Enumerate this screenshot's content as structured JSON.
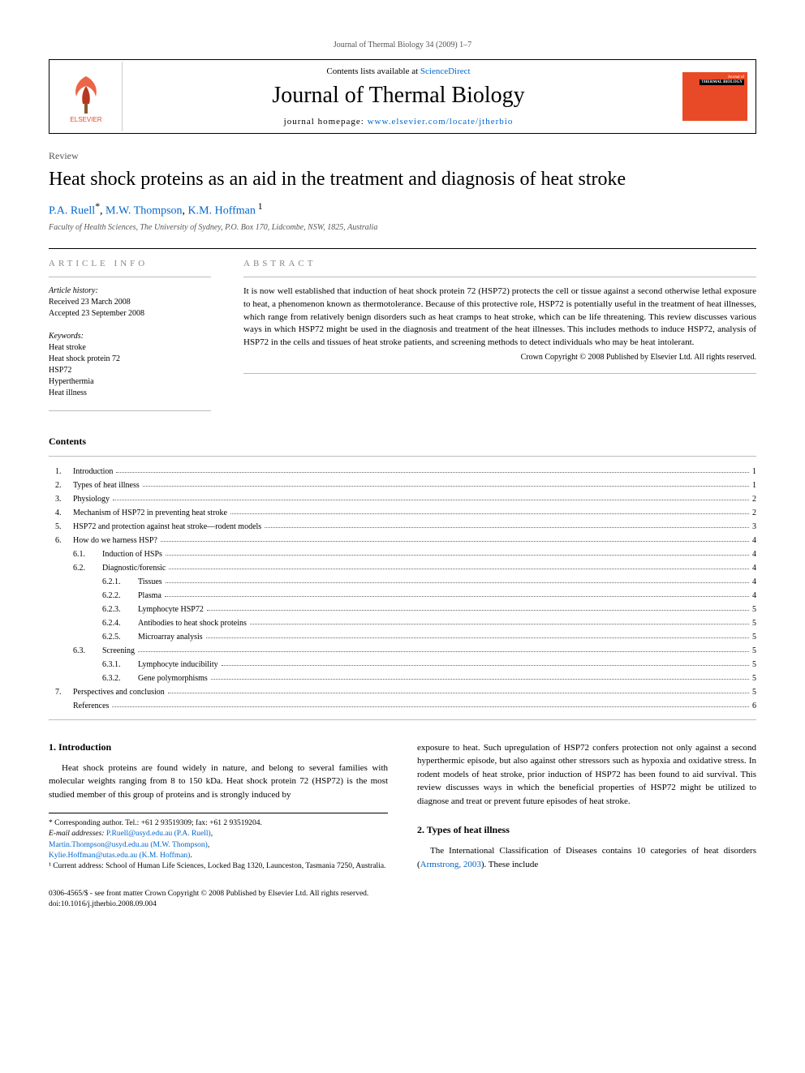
{
  "running_head": "Journal of Thermal Biology 34 (2009) 1–7",
  "header": {
    "contents_prefix": "Contents lists available at ",
    "contents_link": "ScienceDirect",
    "journal_name": "Journal of Thermal Biology",
    "homepage_prefix": "journal homepage: ",
    "homepage_link": "www.elsevier.com/locate/jtherbio",
    "elsevier_label": "ELSEVIER",
    "cover_label1": "Journal of",
    "cover_label2": "THERMAL BIOLOGY"
  },
  "article_type": "Review",
  "title": "Heat shock proteins as an aid in the treatment and diagnosis of heat stroke",
  "authors_html": "P.A. Ruell *, M.W. Thompson, K.M. Hoffman ¹",
  "authors": {
    "a1": "P.A. Ruell",
    "sup1": "*",
    "sep1": ", ",
    "a2": "M.W. Thompson",
    "sep2": ", ",
    "a3": "K.M. Hoffman",
    "sup2": " 1"
  },
  "affiliation": "Faculty of Health Sciences, The University of Sydney, P.O. Box 170, Lidcombe, NSW, 1825, Australia",
  "info_head": "ARTICLE INFO",
  "abstract_head": "ABSTRACT",
  "history": {
    "lbl": "Article history:",
    "received": "Received 23 March 2008",
    "accepted": "Accepted 23 September 2008"
  },
  "keywords": {
    "lbl": "Keywords:",
    "items": [
      "Heat stroke",
      "Heat shock protein 72",
      "HSP72",
      "Hyperthermia",
      "Heat illness"
    ]
  },
  "abstract": "It is now well established that induction of heat shock protein 72 (HSP72) protects the cell or tissue against a second otherwise lethal exposure to heat, a phenomenon known as thermotolerance. Because of this protective role, HSP72 is potentially useful in the treatment of heat illnesses, which range from relatively benign disorders such as heat cramps to heat stroke, which can be life threatening. This review discusses various ways in which HSP72 might be used in the diagnosis and treatment of the heat illnesses. This includes methods to induce HSP72, analysis of HSP72 in the cells and tissues of heat stroke patients, and screening methods to detect individuals who may be heat intolerant.",
  "copyright_line": "Crown Copyright © 2008 Published by Elsevier Ltd. All rights reserved.",
  "contents_head": "Contents",
  "toc": [
    {
      "level": 1,
      "num": "1.",
      "text": "Introduction",
      "page": "1"
    },
    {
      "level": 1,
      "num": "2.",
      "text": "Types of heat illness",
      "page": "1"
    },
    {
      "level": 1,
      "num": "3.",
      "text": "Physiology",
      "page": "2"
    },
    {
      "level": 1,
      "num": "4.",
      "text": "Mechanism of HSP72 in preventing heat stroke",
      "page": "2"
    },
    {
      "level": 1,
      "num": "5.",
      "text": "HSP72 and protection against heat stroke—rodent models",
      "page": "3"
    },
    {
      "level": 1,
      "num": "6.",
      "text": "How do we harness HSP?",
      "page": "4"
    },
    {
      "level": 2,
      "num": "6.1.",
      "text": "Induction of HSPs",
      "page": "4"
    },
    {
      "level": 2,
      "num": "6.2.",
      "text": "Diagnostic/forensic",
      "page": "4"
    },
    {
      "level": 3,
      "num": "6.2.1.",
      "text": "Tissues",
      "page": "4"
    },
    {
      "level": 3,
      "num": "6.2.2.",
      "text": "Plasma",
      "page": "4"
    },
    {
      "level": 3,
      "num": "6.2.3.",
      "text": "Lymphocyte HSP72",
      "page": "5"
    },
    {
      "level": 3,
      "num": "6.2.4.",
      "text": "Antibodies to heat shock proteins",
      "page": "5"
    },
    {
      "level": 3,
      "num": "6.2.5.",
      "text": "Microarray analysis",
      "page": "5"
    },
    {
      "level": 2,
      "num": "6.3.",
      "text": "Screening",
      "page": "5"
    },
    {
      "level": 3,
      "num": "6.3.1.",
      "text": "Lymphocyte inducibility",
      "page": "5"
    },
    {
      "level": 3,
      "num": "6.3.2.",
      "text": "Gene polymorphisms",
      "page": "5"
    },
    {
      "level": 1,
      "num": "7.",
      "text": "Perspectives and conclusion",
      "page": "5"
    },
    {
      "level": 1,
      "num": "",
      "text": "References",
      "page": "6"
    }
  ],
  "sections": {
    "intro_head": "1.  Introduction",
    "intro_para": "Heat shock proteins are found widely in nature, and belong to several families with molecular weights ranging from 8 to 150 kDa. Heat shock protein 72 (HSP72) is the most studied member of this group of proteins and is strongly induced by",
    "intro_cont": "exposure to heat. Such upregulation of HSP72 confers protection not only against a second hyperthermic episode, but also against other stressors such as hypoxia and oxidative stress. In rodent models of heat stroke, prior induction of HSP72 has been found to aid survival. This review discusses ways in which the beneficial properties of HSP72 might be utilized to diagnose and treat or prevent future episodes of heat stroke.",
    "types_head": "2.  Types of heat illness",
    "types_para_prefix": "The International Classification of Diseases contains 10 categories of heat disorders (",
    "types_para_link": "Armstrong, 2003",
    "types_para_suffix": "). These include"
  },
  "footnotes": {
    "corr": "* Corresponding author. Tel.: +61 2 93519309; fax: +61 2 93519204.",
    "email_lbl": "E-mail addresses: ",
    "email1": "P.Ruell@usyd.edu.au (P.A. Ruell)",
    "sepA": ",",
    "email2": "Martin.Thompson@usyd.edu.au (M.W. Thompson)",
    "sepB": ",",
    "email3": "Kylie.Hoffman@utas.edu.au (K.M. Hoffman)",
    "sepC": ".",
    "note1": "¹ Current address: School of Human Life Sciences, Locked Bag 1320, Launceston, Tasmania 7250, Australia."
  },
  "bottom": {
    "line1": "0306-4565/$ - see front matter Crown Copyright © 2008 Published by Elsevier Ltd. All rights reserved.",
    "line2": "doi:10.1016/j.jtherbio.2008.09.004"
  },
  "colors": {
    "link": "#0066cc",
    "elsevier_orange": "#e84a27",
    "text": "#000000",
    "muted": "#555555"
  }
}
